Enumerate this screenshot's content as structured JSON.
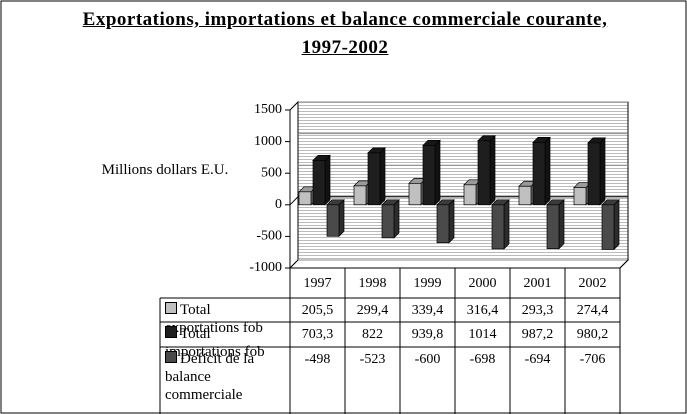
{
  "chart_data": {
    "type": "bar",
    "title": "Exportations, importations et balance commerciale courante, 1997-2002",
    "y_label": "Millions dollars E.U.",
    "categories": [
      "1997",
      "1998",
      "1999",
      "2000",
      "2001",
      "2002"
    ],
    "series": [
      {
        "name": "Total exportations fob",
        "color": "#c0c0c0",
        "values": [
          205.5,
          299.4,
          339.4,
          316.4,
          293.3,
          274.4
        ],
        "value_labels": [
          "205,5",
          "299,4",
          "339,4",
          "316,4",
          "293,3",
          "274,4"
        ]
      },
      {
        "name": "Total importations fob",
        "color": "#1e1e1e",
        "values": [
          703.3,
          822,
          939.8,
          1014,
          987.2,
          980.2
        ],
        "value_labels": [
          "703,3",
          "822",
          "939,8",
          "1014",
          "987,2",
          "980,2"
        ]
      },
      {
        "name": "Deficit de la balance commerciale",
        "color": "#4a4a4a",
        "values": [
          -498,
          -523,
          -600,
          -698,
          -694,
          -706
        ],
        "value_labels": [
          "-498",
          "-523",
          "-600",
          "-698",
          "-694",
          "-706"
        ]
      }
    ],
    "ylim": [
      -1000,
      1500
    ],
    "yticks": [
      -1000,
      -500,
      0,
      500,
      1000,
      1500
    ],
    "grid": true
  }
}
